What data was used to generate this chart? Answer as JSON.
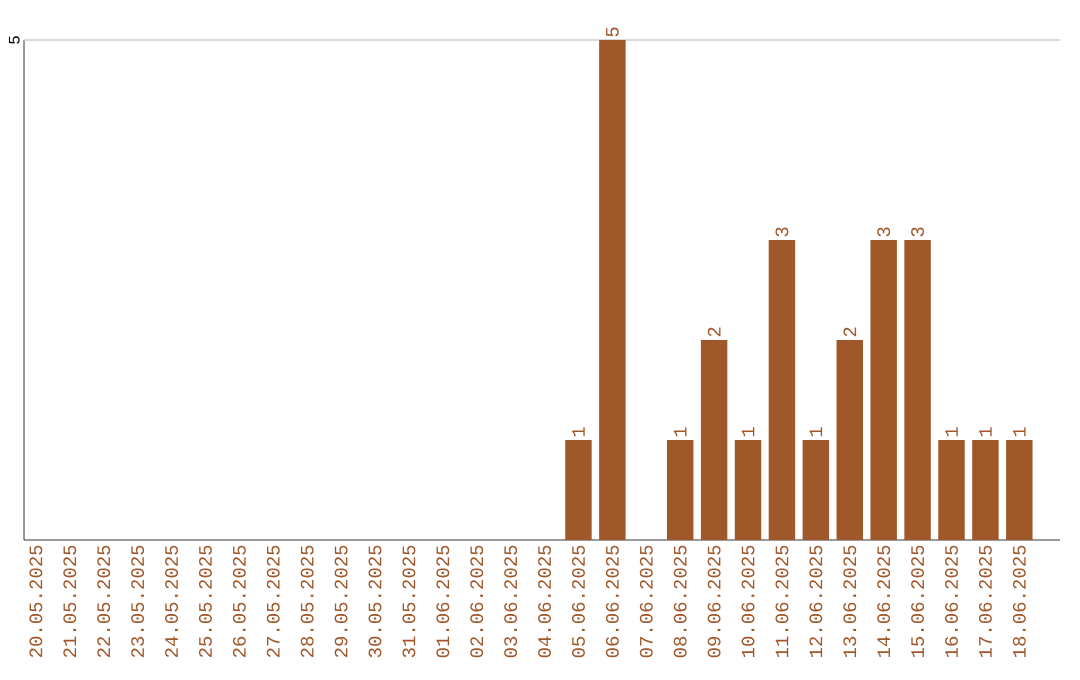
{
  "chart_data": {
    "type": "bar",
    "ylim": [
      0,
      5
    ],
    "annotations": [
      "5"
    ],
    "categories": [
      "20.05.2025",
      "21.05.2025",
      "22.05.2025",
      "23.05.2025",
      "24.05.2025",
      "25.05.2025",
      "26.05.2025",
      "27.05.2025",
      "28.05.2025",
      "29.05.2025",
      "30.05.2025",
      "31.05.2025",
      "01.06.2025",
      "02.06.2025",
      "03.06.2025",
      "04.06.2025",
      "05.06.2025",
      "06.06.2025",
      "07.06.2025",
      "08.06.2025",
      "09.06.2025",
      "10.06.2025",
      "11.06.2025",
      "12.06.2025",
      "13.06.2025",
      "14.06.2025",
      "15.06.2025",
      "16.06.2025",
      "17.06.2025",
      "18.06.2025"
    ],
    "values": [
      null,
      null,
      null,
      null,
      null,
      null,
      null,
      null,
      null,
      null,
      null,
      null,
      null,
      null,
      null,
      null,
      1,
      5,
      null,
      1,
      2,
      1,
      3,
      1,
      2,
      3,
      3,
      1,
      1,
      1
    ],
    "value_labels": [
      null,
      null,
      null,
      null,
      null,
      null,
      null,
      null,
      null,
      null,
      null,
      null,
      null,
      null,
      null,
      null,
      "1",
      "5",
      null,
      "1",
      "2",
      "1",
      "3",
      "1",
      "2",
      "3",
      "3",
      "1",
      "1",
      "1"
    ],
    "color": "#a0572a"
  }
}
